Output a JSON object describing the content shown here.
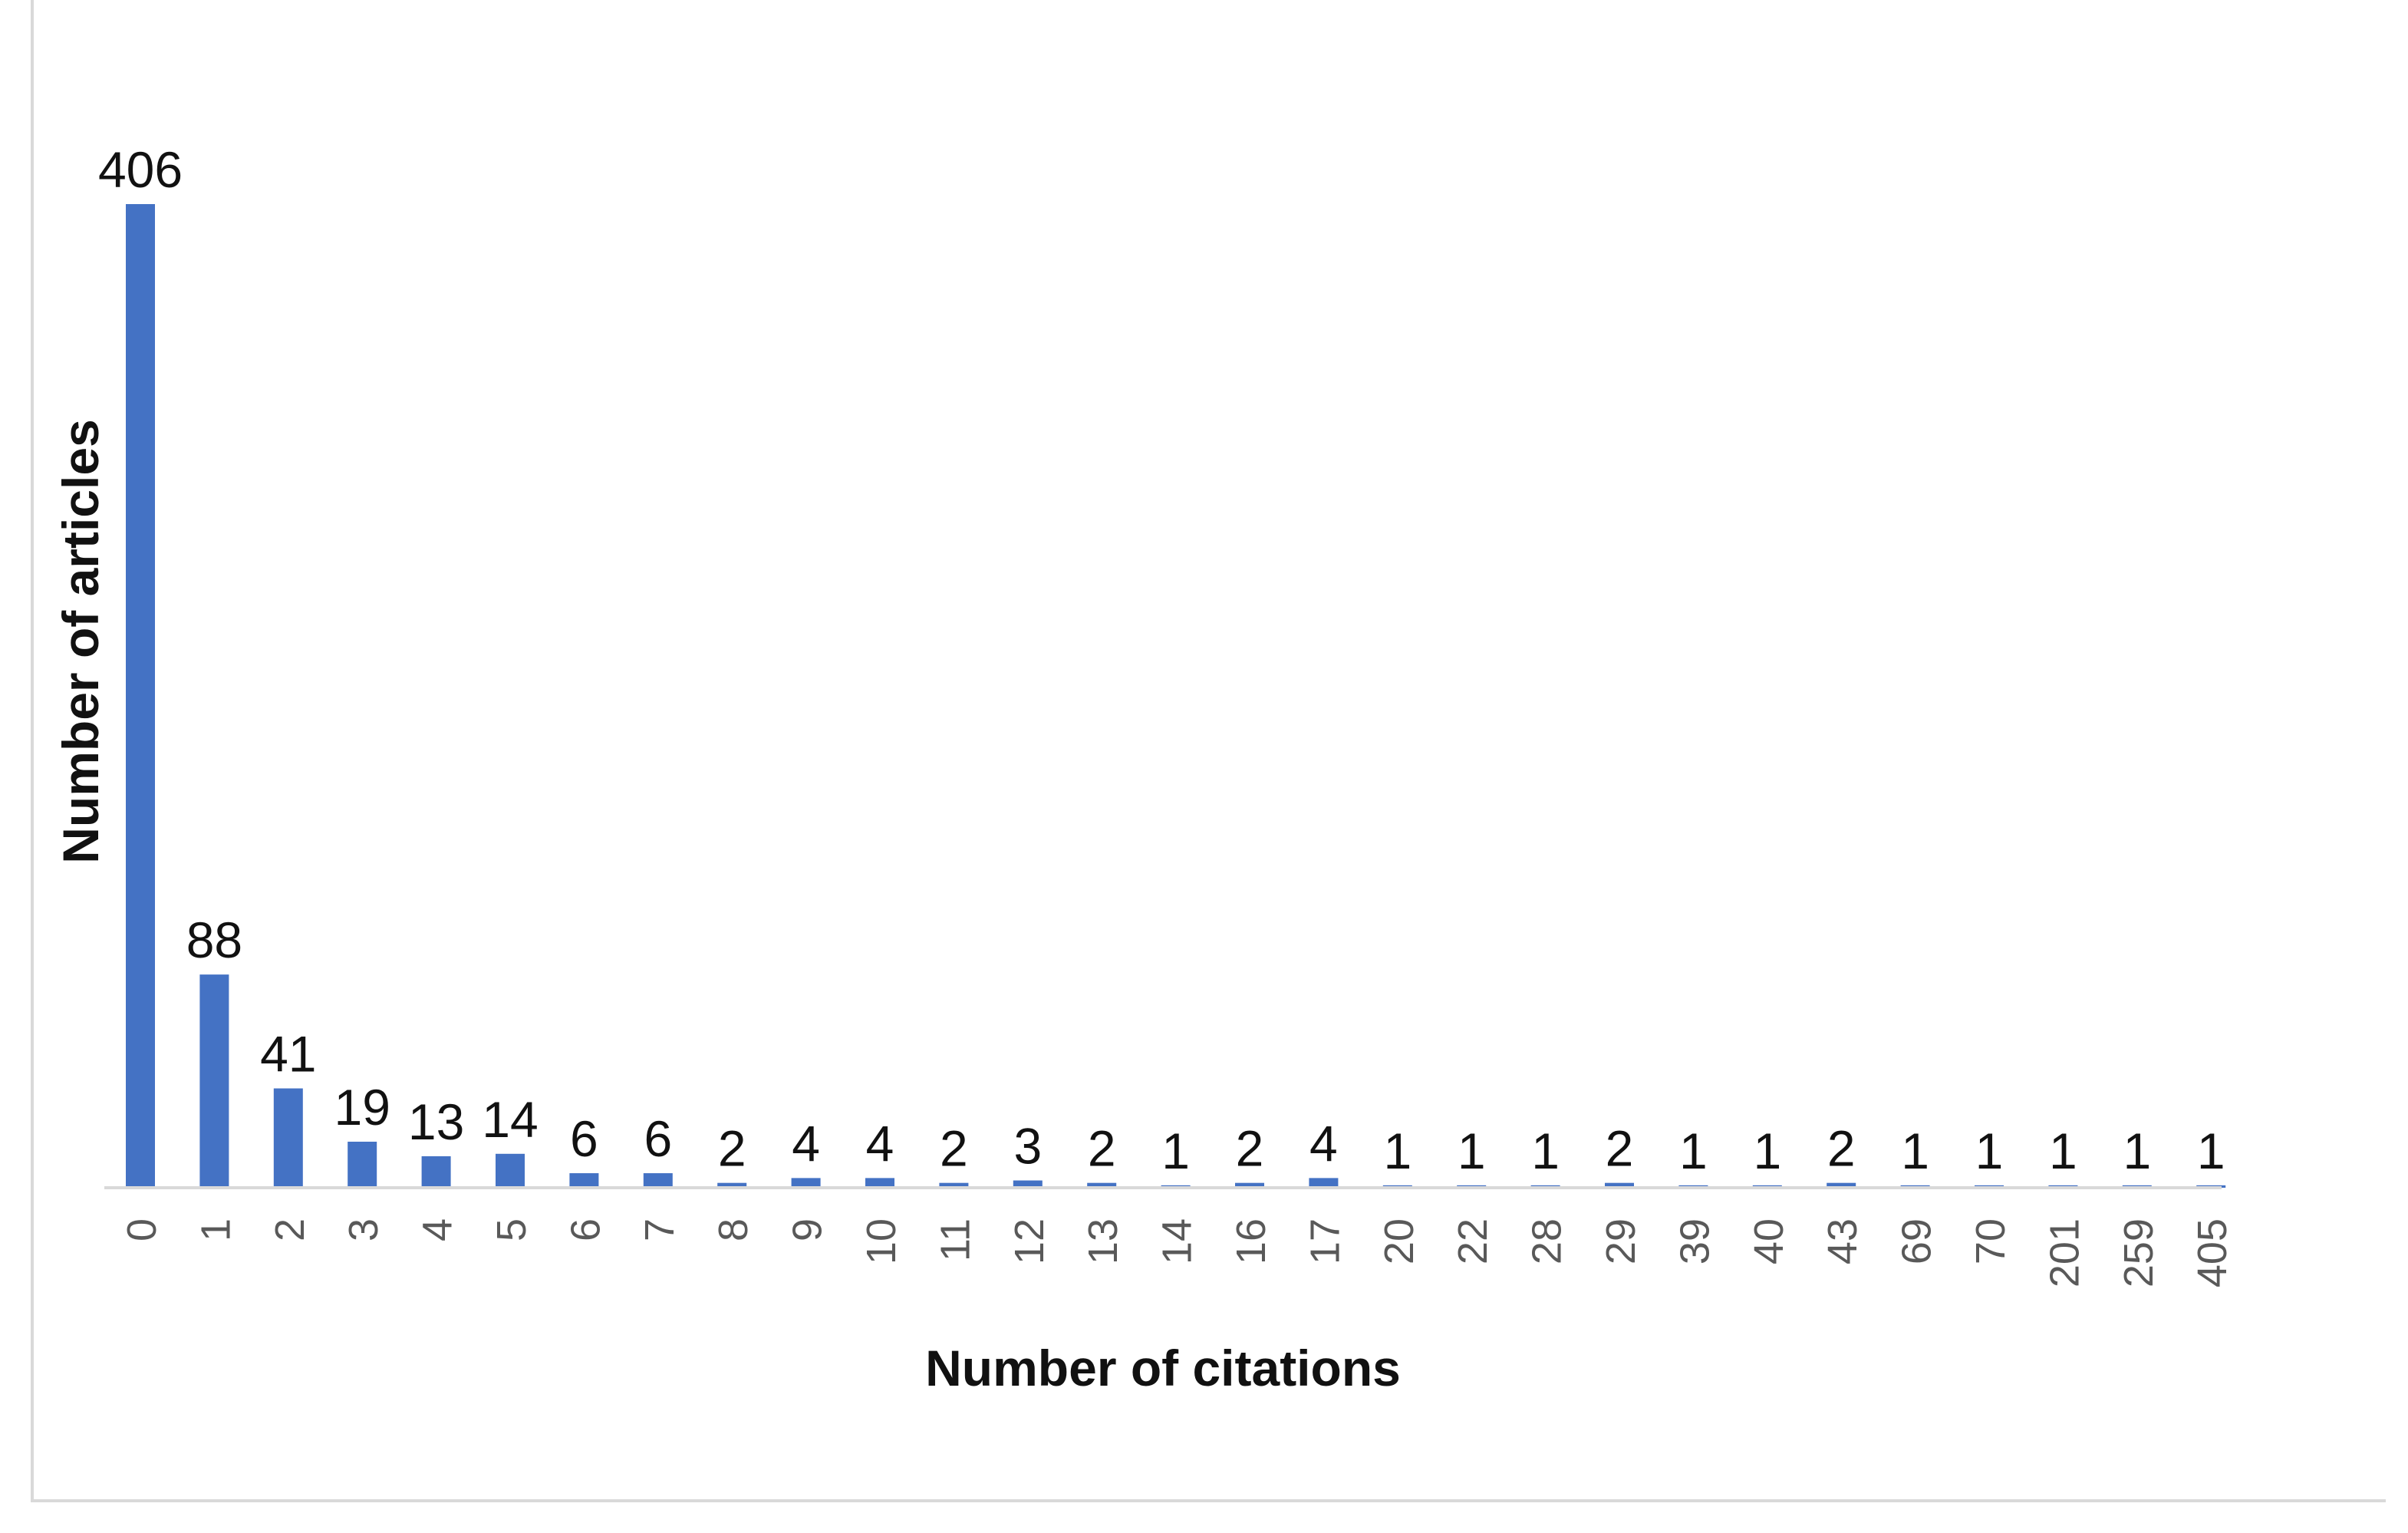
{
  "chart_data": {
    "type": "bar",
    "title": "",
    "xlabel": "Number of citations",
    "ylabel": "Number of articles",
    "categories": [
      "0",
      "1",
      "2",
      "3",
      "4",
      "5",
      "6",
      "7",
      "8",
      "9",
      "10",
      "11",
      "12",
      "13",
      "14",
      "16",
      "17",
      "20",
      "22",
      "28",
      "29",
      "39",
      "40",
      "43",
      "69",
      "70",
      "201",
      "259",
      "405"
    ],
    "series": [
      {
        "values": [
          406,
          88,
          41,
          19,
          13,
          14,
          6,
          6,
          2,
          4,
          4,
          2,
          3,
          2,
          1,
          2,
          4,
          1,
          1,
          1,
          2,
          1,
          1,
          2,
          1,
          1,
          1,
          1,
          1
        ]
      }
    ],
    "ylim": [
      0,
      406
    ],
    "data_labels": true,
    "grid": false,
    "legend": "none",
    "bar_color": "#4472c4"
  }
}
